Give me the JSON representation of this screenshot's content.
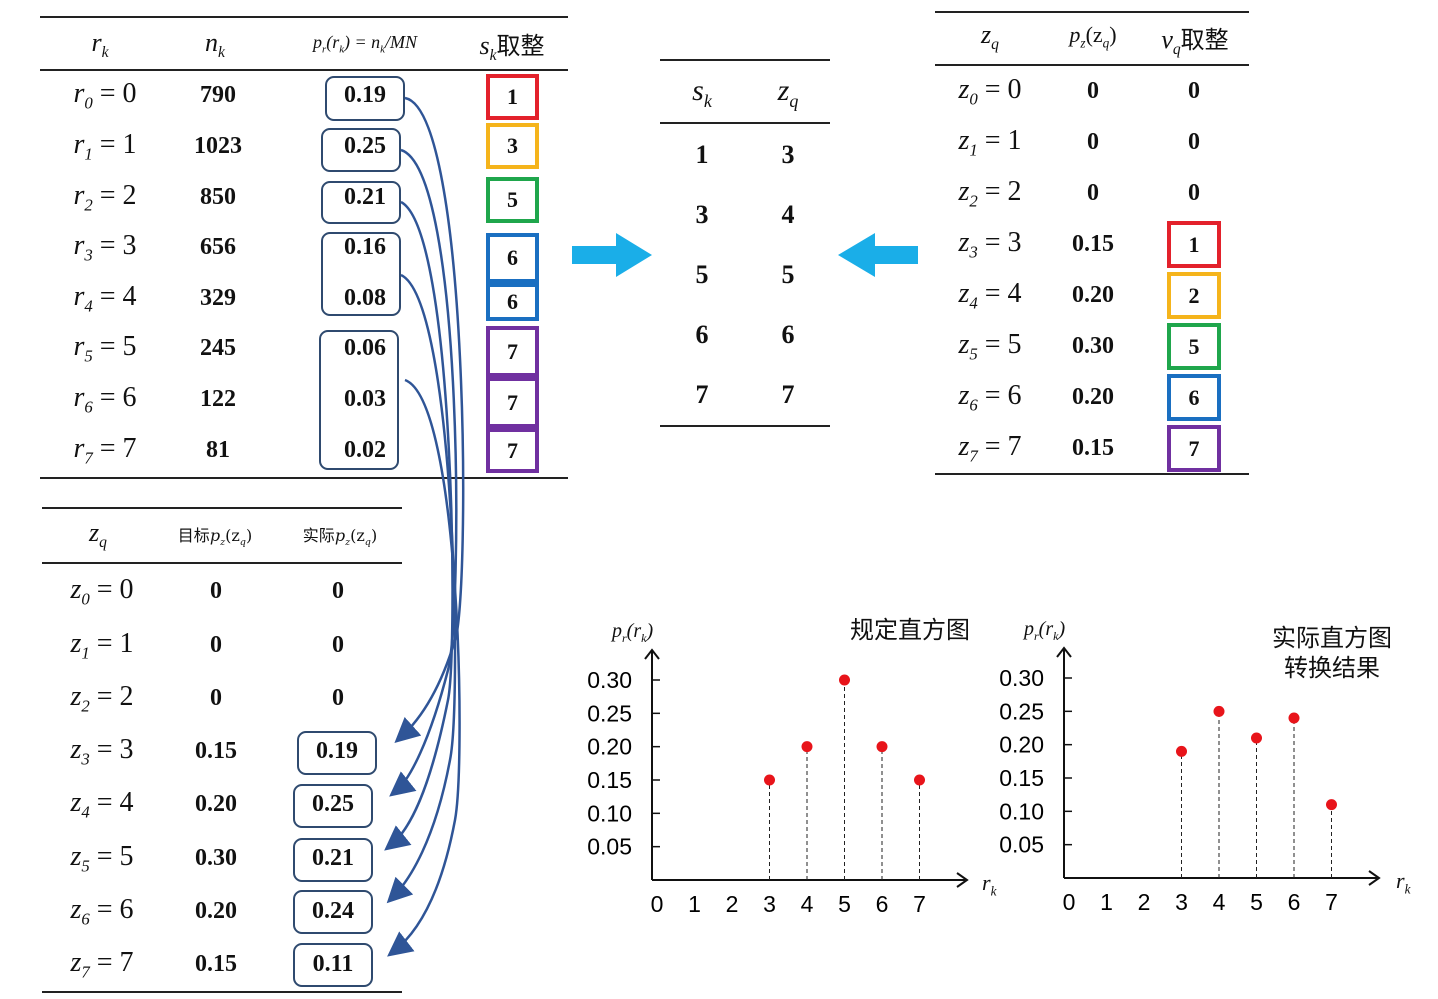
{
  "colors": {
    "red": "#e3212b",
    "orange": "#f5b41b",
    "green": "#1fa64c",
    "blue": "#1a6fc1",
    "purple": "#7030a0",
    "arrow_cyan": "#1aaee8",
    "curve": "#2f5597",
    "dot": "#e8141a"
  },
  "table1": {
    "headers": {
      "rk": "r",
      "rk_sub": "k",
      "nk": "n",
      "nk_sub": "k",
      "pr": "p",
      "pr_tail": "(r",
      "pr_rest": ") = n",
      "pr_mn": "/MN",
      "sk": "s",
      "sk_sub": "k",
      "sk_tail": "取整"
    },
    "rows": [
      {
        "r_sub": "0",
        "r_val": "0",
        "n": "790",
        "p": "0.19",
        "s": "1"
      },
      {
        "r_sub": "1",
        "r_val": "1",
        "n": "1023",
        "p": "0.25",
        "s": "3"
      },
      {
        "r_sub": "2",
        "r_val": "2",
        "n": "850",
        "p": "0.21",
        "s": "5"
      },
      {
        "r_sub": "3",
        "r_val": "3",
        "n": "656",
        "p": "0.16",
        "s": "6"
      },
      {
        "r_sub": "4",
        "r_val": "4",
        "n": "329",
        "p": "0.08",
        "s": "6"
      },
      {
        "r_sub": "5",
        "r_val": "5",
        "n": "245",
        "p": "0.06",
        "s": "7"
      },
      {
        "r_sub": "6",
        "r_val": "6",
        "n": "122",
        "p": "0.03",
        "s": "7"
      },
      {
        "r_sub": "7",
        "r_val": "7",
        "n": "81",
        "p": "0.02",
        "s": "7"
      }
    ]
  },
  "table2": {
    "headers": {
      "s": "s",
      "s_sub": "k",
      "z": "z",
      "z_sub": "q"
    },
    "rows": [
      {
        "s": "1",
        "z": "3"
      },
      {
        "s": "3",
        "z": "4"
      },
      {
        "s": "5",
        "z": "5"
      },
      {
        "s": "6",
        "z": "6"
      },
      {
        "s": "7",
        "z": "7"
      }
    ]
  },
  "table3": {
    "headers": {
      "z": "z",
      "z_sub": "q",
      "p": "p",
      "p_sub": "z",
      "p_tail": "(z",
      "p_tail_sub": "q",
      "p_close": ")",
      "v": "v",
      "v_sub": "q",
      "v_tail": "取整"
    },
    "rows": [
      {
        "z_sub": "0",
        "z_val": "0",
        "p": "0",
        "v": "0"
      },
      {
        "z_sub": "1",
        "z_val": "1",
        "p": "0",
        "v": "0"
      },
      {
        "z_sub": "2",
        "z_val": "2",
        "p": "0",
        "v": "0"
      },
      {
        "z_sub": "3",
        "z_val": "3",
        "p": "0.15",
        "v": "1"
      },
      {
        "z_sub": "4",
        "z_val": "4",
        "p": "0.20",
        "v": "2"
      },
      {
        "z_sub": "5",
        "z_val": "5",
        "p": "0.30",
        "v": "5"
      },
      {
        "z_sub": "6",
        "z_val": "6",
        "p": "0.20",
        "v": "6"
      },
      {
        "z_sub": "7",
        "z_val": "7",
        "p": "0.15",
        "v": "7"
      }
    ]
  },
  "table4": {
    "headers": {
      "z": "z",
      "z_sub": "q",
      "target": "目标",
      "actual": "实际",
      "pz": "p",
      "pz_sub": "z",
      "pz_tail": "(z",
      "pz_tail_sub": "q",
      "pz_close": ")"
    },
    "rows": [
      {
        "z_sub": "0",
        "z_val": "0",
        "target": "0",
        "actual": "0"
      },
      {
        "z_sub": "1",
        "z_val": "1",
        "target": "0",
        "actual": "0"
      },
      {
        "z_sub": "2",
        "z_val": "2",
        "target": "0",
        "actual": "0"
      },
      {
        "z_sub": "3",
        "z_val": "3",
        "target": "0.15",
        "actual": "0.19"
      },
      {
        "z_sub": "4",
        "z_val": "4",
        "target": "0.20",
        "actual": "0.25"
      },
      {
        "z_sub": "5",
        "z_val": "5",
        "target": "0.30",
        "actual": "0.21"
      },
      {
        "z_sub": "6",
        "z_val": "6",
        "target": "0.20",
        "actual": "0.24"
      },
      {
        "z_sub": "7",
        "z_val": "7",
        "target": "0.15",
        "actual": "0.11"
      }
    ]
  },
  "chart_data": [
    {
      "type": "scatter",
      "title": "规定直方图",
      "ylabel": "p_r(r_k)",
      "xlabel": "r_k",
      "x_ticks": [
        "0",
        "1",
        "2",
        "3",
        "4",
        "5",
        "6",
        "7"
      ],
      "y_ticks": [
        "0.30",
        "0.25",
        "0.20",
        "0.15",
        "0.10",
        "0.05"
      ],
      "ylim": [
        0,
        0.33
      ],
      "points": [
        {
          "x": 3,
          "y": 0.15
        },
        {
          "x": 4,
          "y": 0.2
        },
        {
          "x": 5,
          "y": 0.3
        },
        {
          "x": 6,
          "y": 0.2
        },
        {
          "x": 7,
          "y": 0.15
        }
      ]
    },
    {
      "type": "scatter",
      "title": "实际直方图",
      "subtitle": "转换结果",
      "ylabel": "p_r(r_k)",
      "xlabel": "r_k",
      "x_ticks": [
        "0",
        "1",
        "2",
        "3",
        "4",
        "5",
        "6",
        "7"
      ],
      "y_ticks": [
        "0.30",
        "0.25",
        "0.20",
        "0.15",
        "0.10",
        "0.05"
      ],
      "ylim": [
        0,
        0.33
      ],
      "points": [
        {
          "x": 3,
          "y": 0.19
        },
        {
          "x": 4,
          "y": 0.25
        },
        {
          "x": 5,
          "y": 0.21
        },
        {
          "x": 6,
          "y": 0.24
        },
        {
          "x": 7,
          "y": 0.11
        }
      ]
    }
  ]
}
